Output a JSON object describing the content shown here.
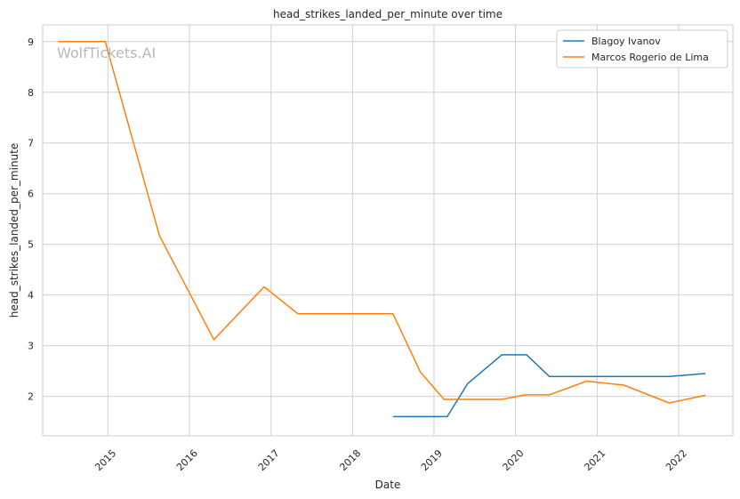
{
  "chart_data": {
    "type": "line",
    "title": "head_strikes_landed_per_minute over time",
    "xlabel": "Date",
    "ylabel": "head_strikes_landed_per_minute",
    "watermark": "WolfTickets.AI",
    "x_ticks": [
      "2015",
      "2016",
      "2017",
      "2018",
      "2019",
      "2020",
      "2021",
      "2022"
    ],
    "y_ticks": [
      2,
      3,
      4,
      5,
      6,
      7,
      8,
      9
    ],
    "xlim": [
      "2014-03-15",
      "2022-09-01"
    ],
    "ylim": [
      1.22,
      9.33
    ],
    "grid": true,
    "legend_position": "top-right",
    "series": [
      {
        "name": "Blagoy Ivanov",
        "color": "#1f77b4",
        "points": [
          {
            "x": "2018-07-01",
            "y": 1.6
          },
          {
            "x": "2019-03-01",
            "y": 1.6
          },
          {
            "x": "2019-06-01",
            "y": 2.25
          },
          {
            "x": "2019-11-01",
            "y": 2.82
          },
          {
            "x": "2020-02-20",
            "y": 2.82
          },
          {
            "x": "2020-06-01",
            "y": 2.39
          },
          {
            "x": "2021-11-20",
            "y": 2.39
          },
          {
            "x": "2022-05-01",
            "y": 2.45
          }
        ]
      },
      {
        "name": "Marcos Rogerio de Lima",
        "color": "#ff7f0e",
        "points": [
          {
            "x": "2014-05-25",
            "y": 9.0
          },
          {
            "x": "2014-12-20",
            "y": 9.0
          },
          {
            "x": "2015-08-20",
            "y": 5.17
          },
          {
            "x": "2016-04-20",
            "y": 3.12
          },
          {
            "x": "2016-12-01",
            "y": 4.16
          },
          {
            "x": "2017-05-01",
            "y": 3.63
          },
          {
            "x": "2018-07-01",
            "y": 3.63
          },
          {
            "x": "2018-11-01",
            "y": 2.48
          },
          {
            "x": "2019-02-15",
            "y": 1.94
          },
          {
            "x": "2019-11-01",
            "y": 1.94
          },
          {
            "x": "2020-02-15",
            "y": 2.03
          },
          {
            "x": "2020-06-01",
            "y": 2.03
          },
          {
            "x": "2020-11-15",
            "y": 2.3
          },
          {
            "x": "2021-05-01",
            "y": 2.22
          },
          {
            "x": "2021-11-20",
            "y": 1.87
          },
          {
            "x": "2022-05-01",
            "y": 2.02
          }
        ]
      }
    ]
  }
}
